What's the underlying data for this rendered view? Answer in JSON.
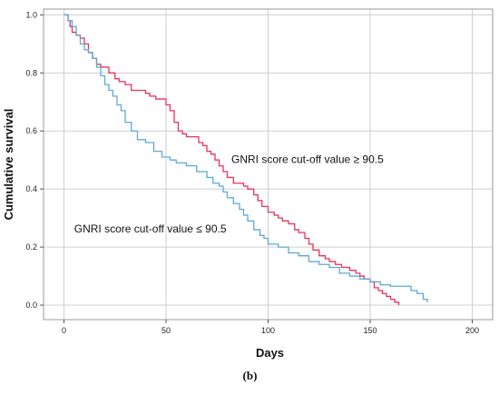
{
  "chart_data": {
    "type": "line",
    "xlabel": "Days",
    "ylabel": "Cumulative survival",
    "xlim": [
      -10,
      210
    ],
    "ylim": [
      -0.05,
      1.02
    ],
    "xticks": [
      0,
      50,
      100,
      150,
      200
    ],
    "xtick_labels": [
      "0",
      "50",
      "100",
      "150",
      "200"
    ],
    "yticks": [
      0.0,
      0.2,
      0.4,
      0.6,
      0.8,
      1.0
    ],
    "ytick_labels": [
      "0.0",
      "0.2",
      "0.4",
      "0.6",
      "0.8",
      "1.0"
    ],
    "grid": true,
    "annotations": [
      {
        "text": "GNRI score cut-off value ≥ 90.5",
        "x": 82,
        "y": 0.49,
        "color": "#111111"
      },
      {
        "text": "GNRI score cut-off value ≤ 90.5",
        "x": 5,
        "y": 0.25,
        "color": "#111111"
      }
    ],
    "caption": "(b)",
    "series": [
      {
        "color": "#e8325a",
        "style": "step",
        "x": [
          0,
          2,
          3,
          4,
          6,
          8,
          10,
          12,
          14,
          16,
          18,
          20,
          22,
          25,
          27,
          30,
          33,
          36,
          38,
          40,
          42,
          45,
          48,
          50,
          52,
          54,
          56,
          58,
          60,
          64,
          66,
          68,
          70,
          72,
          74,
          76,
          78,
          80,
          83,
          86,
          88,
          90,
          93,
          95,
          97,
          100,
          103,
          105,
          107,
          110,
          113,
          115,
          118,
          120,
          122,
          125,
          128,
          130,
          133,
          136,
          140,
          143,
          145,
          147,
          150,
          152,
          154,
          156,
          158,
          160,
          162,
          164
        ],
        "y": [
          1.0,
          0.98,
          0.96,
          0.94,
          0.93,
          0.92,
          0.9,
          0.87,
          0.85,
          0.83,
          0.82,
          0.82,
          0.8,
          0.78,
          0.77,
          0.76,
          0.74,
          0.74,
          0.74,
          0.73,
          0.72,
          0.71,
          0.71,
          0.69,
          0.67,
          0.63,
          0.6,
          0.59,
          0.58,
          0.58,
          0.56,
          0.55,
          0.53,
          0.52,
          0.5,
          0.48,
          0.46,
          0.44,
          0.42,
          0.42,
          0.41,
          0.4,
          0.38,
          0.36,
          0.34,
          0.32,
          0.31,
          0.3,
          0.29,
          0.28,
          0.26,
          0.25,
          0.23,
          0.21,
          0.19,
          0.17,
          0.16,
          0.15,
          0.14,
          0.13,
          0.12,
          0.11,
          0.1,
          0.09,
          0.08,
          0.06,
          0.05,
          0.04,
          0.03,
          0.02,
          0.01,
          0.0
        ]
      },
      {
        "color": "#5ba9d8",
        "style": "step",
        "x": [
          0,
          2,
          4,
          6,
          8,
          10,
          12,
          14,
          16,
          18,
          20,
          22,
          24,
          26,
          28,
          30,
          33,
          36,
          40,
          44,
          48,
          52,
          55,
          60,
          65,
          70,
          73,
          76,
          78,
          80,
          83,
          86,
          88,
          90,
          93,
          96,
          98,
          100,
          105,
          110,
          115,
          120,
          125,
          130,
          135,
          140,
          145,
          150,
          155,
          160,
          170,
          173,
          176,
          178
        ],
        "y": [
          1.0,
          0.98,
          0.96,
          0.93,
          0.9,
          0.88,
          0.87,
          0.85,
          0.82,
          0.79,
          0.76,
          0.74,
          0.72,
          0.69,
          0.67,
          0.63,
          0.6,
          0.57,
          0.56,
          0.53,
          0.51,
          0.5,
          0.49,
          0.48,
          0.46,
          0.44,
          0.42,
          0.41,
          0.39,
          0.37,
          0.35,
          0.33,
          0.31,
          0.29,
          0.26,
          0.24,
          0.23,
          0.21,
          0.2,
          0.18,
          0.17,
          0.15,
          0.14,
          0.13,
          0.11,
          0.1,
          0.09,
          0.08,
          0.07,
          0.065,
          0.05,
          0.04,
          0.02,
          0.01
        ]
      }
    ]
  }
}
